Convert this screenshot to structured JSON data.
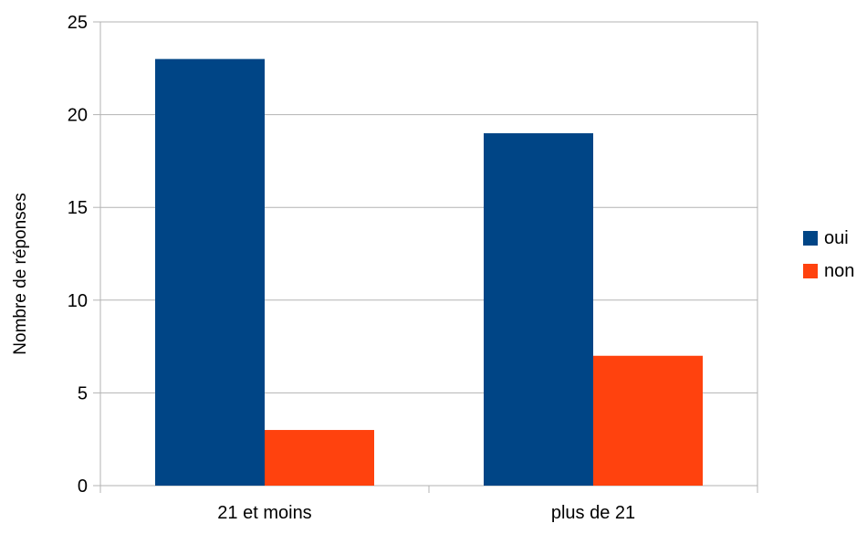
{
  "chart_data": {
    "type": "bar",
    "title": "",
    "xlabel": "",
    "ylabel": "Nombre de réponses",
    "categories": [
      "21 et moins",
      "plus de 21"
    ],
    "series": [
      {
        "name": "oui",
        "values": [
          23,
          19
        ],
        "color": "#004586"
      },
      {
        "name": "non",
        "values": [
          3,
          7
        ],
        "color": "#ff420e"
      }
    ],
    "ylim": [
      0,
      25
    ],
    "yticks": [
      0,
      5,
      10,
      15,
      20,
      25
    ],
    "grid": true,
    "legend": "right"
  }
}
